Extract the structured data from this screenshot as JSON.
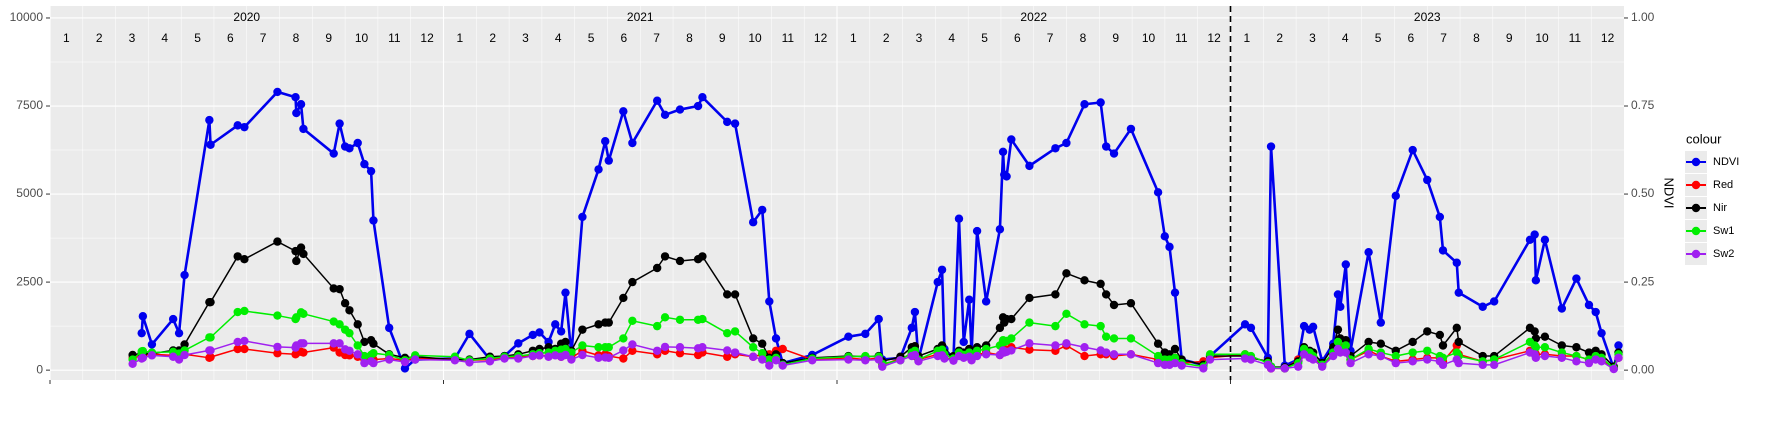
{
  "chart_data": {
    "type": "line",
    "years": [
      2020,
      2021,
      2022,
      2023
    ],
    "months": [
      1,
      2,
      3,
      4,
      5,
      6,
      7,
      8,
      9,
      10,
      11,
      12
    ],
    "vline": 2023,
    "y2_label": "NDVI",
    "legend_title": "colour",
    "legend": "right",
    "grid": true,
    "xlim": [
      2020,
      2024
    ],
    "ylim": [
      -280,
      10340
    ],
    "yticks": [
      0,
      2500,
      5000,
      7500,
      10000
    ],
    "y2lim": [
      -0.028,
      1.034
    ],
    "y2ticks": [
      {
        "value": 0,
        "label": "0.00"
      },
      {
        "value": 0.25,
        "label": "0.25"
      },
      {
        "value": 0.5,
        "label": "0.50"
      },
      {
        "value": 0.75,
        "label": "0.75"
      },
      {
        "value": 1,
        "label": "1.00"
      }
    ],
    "x": [
      2020.21,
      2020.233,
      2020.236,
      2020.259,
      2020.313,
      2020.328,
      2020.342,
      2020.405,
      2020.408,
      2020.477,
      2020.494,
      2020.578,
      2020.624,
      2020.626,
      2020.638,
      2020.644,
      2020.721,
      2020.736,
      2020.75,
      2020.761,
      2020.782,
      2020.799,
      2020.816,
      2020.822,
      2020.862,
      2020.902,
      2020.928,
      2021.029,
      2021.066,
      2021.118,
      2021.155,
      2021.19,
      2021.227,
      2021.244,
      2021.267,
      2021.284,
      2021.299,
      2021.31,
      2021.325,
      2021.353,
      2021.394,
      2021.411,
      2021.42,
      2021.457,
      2021.48,
      2021.543,
      2021.563,
      2021.601,
      2021.647,
      2021.658,
      2021.721,
      2021.741,
      2021.787,
      2021.81,
      2021.828,
      2021.845,
      2021.862,
      2021.937,
      2022.029,
      2022.072,
      2022.106,
      2022.115,
      2022.161,
      2022.19,
      2022.198,
      2022.207,
      2022.256,
      2022.267,
      2022.273,
      2022.296,
      2022.31,
      2022.322,
      2022.336,
      2022.342,
      2022.356,
      2022.379,
      2022.414,
      2022.422,
      2022.425,
      2022.431,
      2022.443,
      2022.489,
      2022.555,
      2022.583,
      2022.629,
      2022.67,
      2022.684,
      2022.704,
      2022.747,
      2022.816,
      2022.833,
      2022.845,
      2022.859,
      2022.876,
      2022.931,
      2022.948,
      2023.037,
      2023.052,
      2023.095,
      2023.103,
      2023.138,
      2023.172,
      2023.187,
      2023.201,
      2023.21,
      2023.233,
      2023.261,
      2023.273,
      2023.279,
      2023.293,
      2023.305,
      2023.351,
      2023.382,
      2023.42,
      2023.463,
      2023.5,
      2023.532,
      2023.54,
      2023.575,
      2023.58,
      2023.641,
      2023.67,
      2023.761,
      2023.773,
      2023.776,
      2023.799,
      2023.842,
      2023.879,
      2023.911,
      2023.928,
      2023.943,
      2023.974,
      2023.986
    ],
    "series": [
      {
        "name": "NDVI",
        "color": "#0000ee",
        "axis": "y2",
        "values": [
          null,
          0.105,
          0.153,
          0.073,
          0.145,
          0.105,
          0.27,
          0.71,
          0.64,
          0.695,
          0.69,
          0.79,
          0.775,
          0.73,
          0.755,
          0.685,
          0.615,
          0.7,
          0.635,
          0.63,
          0.645,
          0.585,
          0.565,
          0.425,
          0.12,
          0.005,
          0.03,
          0.033,
          0.103,
          0.03,
          0.04,
          0.076,
          0.1,
          0.107,
          0.08,
          0.13,
          0.11,
          0.22,
          0.045,
          0.435,
          0.57,
          0.65,
          0.595,
          0.735,
          0.645,
          0.765,
          0.725,
          0.74,
          0.75,
          0.775,
          0.705,
          0.7,
          0.42,
          0.455,
          0.195,
          0.09,
          0.02,
          0.043,
          0.095,
          0.103,
          0.145,
          0.03,
          0.035,
          0.12,
          0.165,
          0.03,
          0.25,
          0.285,
          0.06,
          0.035,
          0.43,
          0.08,
          0.2,
          0.05,
          0.395,
          0.195,
          0.4,
          0.62,
          0.555,
          0.55,
          0.655,
          0.58,
          0.63,
          0.645,
          0.755,
          0.76,
          0.635,
          0.615,
          0.685,
          0.505,
          0.38,
          0.35,
          0.22,
          0.03,
          0.015,
          0.04,
          0.13,
          0.12,
          0.035,
          0.635,
          0.013,
          0.03,
          0.125,
          0.115,
          0.123,
          0.025,
          0.075,
          0.215,
          0.18,
          0.3,
          0.055,
          0.335,
          0.135,
          0.495,
          0.625,
          0.54,
          0.435,
          0.34,
          0.305,
          0.22,
          0.18,
          0.195,
          0.37,
          0.385,
          0.255,
          0.37,
          0.175,
          0.26,
          0.185,
          0.165,
          0.105,
          0.005,
          0.07
        ]
      },
      {
        "name": "Red",
        "color": "#ff0000",
        "values": [
          350,
          400,
          420,
          450,
          420,
          330,
          450,
          350,
          370,
          600,
          600,
          480,
          450,
          480,
          520,
          500,
          640,
          500,
          430,
          420,
          380,
          300,
          330,
          300,
          330,
          280,
          330,
          320,
          280,
          300,
          350,
          380,
          400,
          420,
          400,
          450,
          380,
          450,
          350,
          550,
          420,
          450,
          400,
          330,
          550,
          450,
          550,
          480,
          430,
          500,
          380,
          450,
          380,
          450,
          450,
          550,
          600,
          300,
          350,
          300,
          350,
          150,
          330,
          450,
          400,
          300,
          450,
          500,
          350,
          300,
          480,
          400,
          450,
          330,
          430,
          500,
          430,
          600,
          550,
          580,
          650,
          580,
          550,
          700,
          400,
          450,
          450,
          400,
          450,
          300,
          250,
          300,
          350,
          200,
          250,
          350,
          450,
          350,
          250,
          50,
          50,
          300,
          450,
          400,
          350,
          150,
          450,
          800,
          650,
          700,
          300,
          550,
          400,
          250,
          300,
          350,
          350,
          250,
          700,
          450,
          250,
          300,
          550,
          500,
          450,
          450,
          400,
          400,
          300,
          400,
          300,
          50,
          350
        ]
      },
      {
        "name": "Nir",
        "color": "#000000",
        "values": [
          430,
          470,
          480,
          470,
          560,
          560,
          730,
          1930,
          1930,
          3230,
          3150,
          3650,
          3380,
          3100,
          3480,
          3300,
          2320,
          2300,
          1900,
          1700,
          1300,
          800,
          850,
          750,
          450,
          350,
          380,
          300,
          300,
          380,
          400,
          450,
          550,
          600,
          650,
          600,
          750,
          800,
          550,
          1150,
          1300,
          1350,
          1350,
          2050,
          2500,
          2900,
          3230,
          3100,
          3150,
          3230,
          2150,
          2150,
          900,
          750,
          350,
          450,
          200,
          350,
          400,
          380,
          400,
          250,
          380,
          650,
          680,
          400,
          600,
          700,
          500,
          400,
          550,
          500,
          600,
          450,
          650,
          700,
          1200,
          1500,
          1350,
          1450,
          1450,
          2050,
          2150,
          2750,
          2550,
          2450,
          2150,
          1850,
          1900,
          750,
          500,
          450,
          600,
          300,
          150,
          400,
          400,
          350,
          250,
          100,
          80,
          250,
          650,
          550,
          500,
          200,
          650,
          1150,
          900,
          850,
          400,
          800,
          750,
          550,
          800,
          1100,
          1000,
          700,
          1200,
          800,
          400,
          400,
          1200,
          1100,
          900,
          950,
          700,
          650,
          500,
          550,
          450,
          100,
          500
        ]
      },
      {
        "name": "Sw1",
        "color": "#00ee00",
        "values": [
          300,
          530,
          540,
          500,
          520,
          470,
          560,
          930,
          930,
          1650,
          1680,
          1550,
          1450,
          1500,
          1640,
          1600,
          1380,
          1300,
          1150,
          1050,
          700,
          400,
          430,
          480,
          430,
          280,
          420,
          380,
          280,
          330,
          380,
          400,
          450,
          480,
          500,
          550,
          580,
          600,
          500,
          700,
          650,
          650,
          650,
          900,
          1400,
          1250,
          1500,
          1430,
          1430,
          1450,
          1050,
          1100,
          650,
          480,
          300,
          350,
          150,
          330,
          380,
          400,
          380,
          180,
          280,
          500,
          550,
          300,
          550,
          580,
          450,
          330,
          500,
          430,
          500,
          380,
          550,
          600,
          700,
          850,
          800,
          830,
          900,
          1350,
          1250,
          1600,
          1300,
          1250,
          950,
          900,
          900,
          400,
          300,
          300,
          350,
          200,
          100,
          450,
          450,
          400,
          200,
          100,
          50,
          200,
          600,
          500,
          400,
          150,
          500,
          800,
          600,
          700,
          300,
          600,
          500,
          400,
          500,
          550,
          400,
          350,
          500,
          400,
          250,
          300,
          800,
          700,
          650,
          650,
          500,
          400,
          300,
          400,
          350,
          50,
          450
        ]
      },
      {
        "name": "Sw2",
        "color": "#a020f0",
        "values": [
          180,
          330,
          350,
          420,
          380,
          300,
          430,
          560,
          560,
          800,
          830,
          660,
          640,
          700,
          760,
          760,
          760,
          760,
          590,
          550,
          450,
          200,
          250,
          200,
          300,
          230,
          300,
          280,
          220,
          250,
          330,
          330,
          400,
          420,
          380,
          420,
          380,
          430,
          300,
          430,
          350,
          360,
          350,
          560,
          730,
          550,
          660,
          650,
          620,
          650,
          560,
          500,
          380,
          300,
          130,
          280,
          130,
          280,
          300,
          280,
          300,
          100,
          280,
          400,
          430,
          250,
          400,
          420,
          330,
          270,
          400,
          350,
          380,
          280,
          400,
          450,
          430,
          560,
          500,
          520,
          560,
          760,
          700,
          760,
          650,
          560,
          500,
          450,
          450,
          200,
          150,
          150,
          200,
          130,
          50,
          300,
          330,
          300,
          150,
          50,
          50,
          100,
          450,
          350,
          300,
          100,
          400,
          600,
          500,
          500,
          200,
          450,
          400,
          200,
          250,
          300,
          250,
          150,
          300,
          200,
          150,
          150,
          500,
          450,
          350,
          400,
          350,
          250,
          200,
          300,
          250,
          30,
          350
        ]
      }
    ]
  }
}
